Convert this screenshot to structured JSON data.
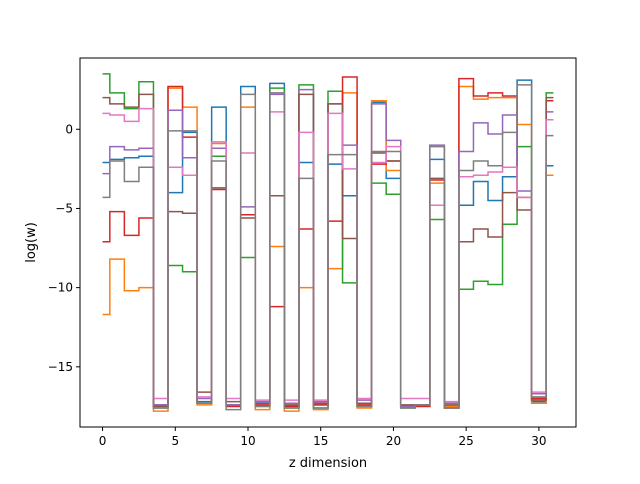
{
  "chart_data": {
    "type": "line",
    "drawstyle": "steps-mid",
    "xlabel": "z dimension",
    "ylabel": "log(w)",
    "xlim": [
      -1.55,
      32.55
    ],
    "ylim": [
      -18.8,
      4.5
    ],
    "xticks": [
      0,
      5,
      10,
      15,
      20,
      25,
      30
    ],
    "yticks": [
      -15,
      -10,
      -5,
      0
    ],
    "ytick_labels": [
      "−15",
      "−10",
      "−5",
      "0"
    ],
    "x": [
      0,
      1,
      2,
      3,
      4,
      5,
      6,
      7,
      8,
      9,
      10,
      11,
      12,
      13,
      14,
      15,
      16,
      17,
      18,
      19,
      20,
      21,
      22,
      23,
      24,
      25,
      26,
      27,
      28,
      29,
      30,
      31
    ],
    "legend": "none",
    "grid": false,
    "series": [
      {
        "color": "#1f77b4",
        "values": [
          -2.1,
          -1.9,
          -1.8,
          -1.7,
          -17.6,
          -4.0,
          -0.2,
          -17.2,
          1.4,
          -17.4,
          2.7,
          -17.3,
          2.9,
          -17.5,
          -2.1,
          -17.4,
          -2.2,
          -4.2,
          -17.5,
          1.7,
          -3.1,
          -17.5,
          -17.4,
          -1.9,
          -17.5,
          -4.8,
          -3.3,
          -4.5,
          -3.0,
          3.1,
          -17.2,
          -2.3
        ]
      },
      {
        "color": "#ff7f0e",
        "values": [
          -11.7,
          -8.2,
          -10.2,
          -10.0,
          -17.8,
          2.6,
          1.4,
          -17.4,
          -0.9,
          -17.5,
          1.4,
          -17.7,
          -7.4,
          -17.8,
          -10.0,
          -17.7,
          -8.8,
          2.3,
          -17.6,
          1.8,
          -2.6,
          -17.5,
          -17.5,
          -3.4,
          -17.5,
          2.7,
          1.9,
          2.0,
          2.0,
          0.3,
          -17.3,
          -2.9
        ]
      },
      {
        "color": "#2ca02c",
        "values": [
          3.5,
          2.3,
          1.3,
          3.0,
          -17.5,
          -8.6,
          -9.0,
          -17.3,
          -1.7,
          -17.5,
          -8.1,
          -17.5,
          2.6,
          -17.6,
          2.8,
          -17.6,
          2.4,
          -9.7,
          -17.5,
          -3.4,
          -4.1,
          -17.6,
          -17.5,
          -5.7,
          -17.6,
          -10.1,
          -9.6,
          -9.8,
          -6.0,
          -1.1,
          -17.0,
          2.3
        ]
      },
      {
        "color": "#d62728",
        "values": [
          -7.1,
          -5.2,
          -6.7,
          -5.6,
          -17.4,
          2.7,
          -0.5,
          -17.3,
          -3.8,
          -17.5,
          -5.4,
          -17.4,
          -11.2,
          -17.5,
          -6.3,
          -17.4,
          -5.8,
          3.3,
          -17.4,
          -2.2,
          -2.0,
          -17.5,
          -17.5,
          -3.2,
          -17.6,
          3.2,
          2.1,
          2.3,
          2.1,
          -4.3,
          -17.0,
          1.8
        ]
      },
      {
        "color": "#9467bd",
        "values": [
          -2.8,
          -1.1,
          -1.3,
          -1.2,
          -17.4,
          1.2,
          -1.8,
          -17.0,
          -1.2,
          -17.4,
          -4.9,
          -17.2,
          2.2,
          -17.3,
          2.5,
          -17.2,
          1.6,
          -1.0,
          -17.1,
          1.6,
          -0.7,
          -17.5,
          -17.4,
          -1.0,
          -17.3,
          -1.4,
          0.4,
          -0.3,
          0.9,
          -3.9,
          -16.7,
          1.1
        ]
      },
      {
        "color": "#8c564b",
        "values": [
          2.0,
          1.6,
          1.4,
          2.2,
          -17.5,
          -5.2,
          -5.3,
          -16.6,
          -3.7,
          -17.2,
          -5.6,
          -17.5,
          -4.2,
          -17.4,
          2.2,
          -17.3,
          1.6,
          -6.9,
          -17.3,
          -1.5,
          -2.0,
          -17.4,
          -17.4,
          -3.1,
          -17.4,
          -7.1,
          -6.3,
          -6.8,
          -4.0,
          -5.1,
          -17.1,
          2.0
        ]
      },
      {
        "color": "#e377c2",
        "values": [
          1.0,
          0.9,
          0.5,
          1.3,
          -17.0,
          -2.4,
          -2.9,
          -16.9,
          -0.8,
          -17.0,
          -1.5,
          -17.1,
          1.1,
          -17.1,
          -0.2,
          -17.1,
          1.0,
          -2.5,
          -17.0,
          -2.1,
          -1.1,
          -17.0,
          -17.0,
          -4.8,
          -17.2,
          -3.0,
          -2.9,
          -2.7,
          -2.4,
          -4.3,
          -16.6,
          0.6
        ]
      },
      {
        "color": "#7f7f7f",
        "values": [
          -4.3,
          -2.0,
          -3.3,
          -2.4,
          -17.6,
          -0.1,
          -0.1,
          -17.3,
          -2.0,
          -17.7,
          2.2,
          -17.5,
          2.3,
          -17.6,
          -3.1,
          -17.6,
          -1.6,
          -1.6,
          -17.5,
          -1.4,
          -1.4,
          -17.6,
          -17.4,
          -1.1,
          -17.6,
          -2.6,
          -2.0,
          -2.3,
          -0.2,
          2.8,
          -16.9,
          -0.4
        ]
      }
    ]
  }
}
